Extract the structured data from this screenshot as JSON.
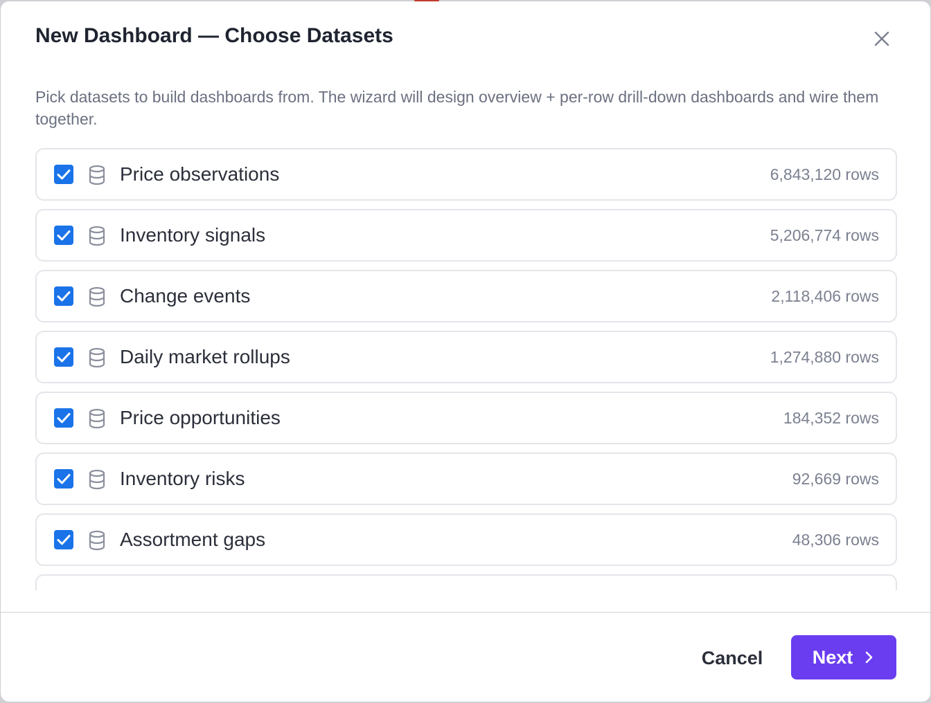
{
  "dialog": {
    "title": "New Dashboard — Choose Datasets",
    "description": "Pick datasets to build dashboards from. The wizard will design overview + per-row drill-down dashboards and wire them together.",
    "close_icon": "close-icon"
  },
  "datasets": [
    {
      "label": "Price observations",
      "rows": "6,843,120 rows",
      "checked": true,
      "icon": "database-icon"
    },
    {
      "label": "Inventory signals",
      "rows": "5,206,774 rows",
      "checked": true,
      "icon": "database-icon"
    },
    {
      "label": "Change events",
      "rows": "2,118,406 rows",
      "checked": true,
      "icon": "database-icon"
    },
    {
      "label": "Daily market rollups",
      "rows": "1,274,880 rows",
      "checked": true,
      "icon": "database-icon"
    },
    {
      "label": "Price opportunities",
      "rows": "184,352 rows",
      "checked": true,
      "icon": "database-icon"
    },
    {
      "label": "Inventory risks",
      "rows": "92,669 rows",
      "checked": true,
      "icon": "database-icon"
    },
    {
      "label": "Assortment gaps",
      "rows": "48,306 rows",
      "checked": true,
      "icon": "database-icon"
    }
  ],
  "footer": {
    "cancel_label": "Cancel",
    "next_label": "Next",
    "next_icon": "chevron-right-icon"
  },
  "colors": {
    "checkbox": "#1a73e8",
    "primary_button": "#6a3df0",
    "title_text": "#1f2430",
    "muted_text": "#6b7080",
    "row_border": "#e4e5ea"
  }
}
